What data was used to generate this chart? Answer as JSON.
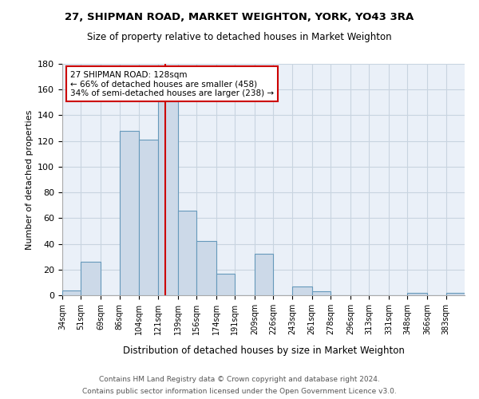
{
  "title": "27, SHIPMAN ROAD, MARKET WEIGHTON, YORK, YO43 3RA",
  "subtitle": "Size of property relative to detached houses in Market Weighton",
  "xlabel": "Distribution of detached houses by size in Market Weighton",
  "ylabel": "Number of detached properties",
  "bar_color": "#ccd9e8",
  "bar_edge_color": "#6699bb",
  "annotation_box_color": "#ffffff",
  "annotation_border_color": "#cc0000",
  "vline_color": "#cc0000",
  "bg_color": "#eaf0f8",
  "grid_color": "#c8d4e0",
  "footer_line1": "Contains HM Land Registry data © Crown copyright and database right 2024.",
  "footer_line2": "Contains public sector information licensed under the Open Government Licence v3.0.",
  "annotation_line1": "27 SHIPMAN ROAD: 128sqm",
  "annotation_line2": "← 66% of detached houses are smaller (458)",
  "annotation_line3": "34% of semi-detached houses are larger (238) →",
  "property_value": 128,
  "bin_edges": [
    34,
    51,
    69,
    86,
    104,
    121,
    139,
    156,
    174,
    191,
    209,
    226,
    243,
    261,
    278,
    296,
    313,
    331,
    348,
    366,
    383
  ],
  "bin_labels": [
    "34sqm",
    "51sqm",
    "69sqm",
    "86sqm",
    "104sqm",
    "121sqm",
    "139sqm",
    "156sqm",
    "174sqm",
    "191sqm",
    "209sqm",
    "226sqm",
    "243sqm",
    "261sqm",
    "278sqm",
    "296sqm",
    "313sqm",
    "331sqm",
    "348sqm",
    "366sqm",
    "383sqm"
  ],
  "counts": [
    4,
    26,
    0,
    128,
    121,
    151,
    66,
    42,
    17,
    0,
    32,
    0,
    7,
    3,
    0,
    0,
    0,
    0,
    2,
    0,
    2
  ],
  "ylim": [
    0,
    180
  ],
  "yticks": [
    0,
    20,
    40,
    60,
    80,
    100,
    120,
    140,
    160,
    180
  ]
}
